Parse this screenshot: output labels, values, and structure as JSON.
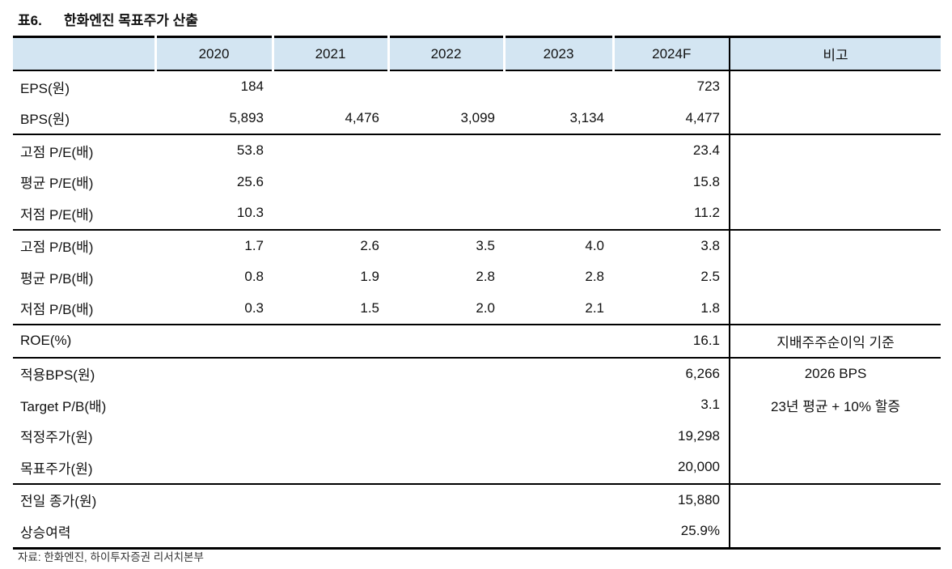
{
  "title": {
    "label": "표6.",
    "text": "한화엔진 목표주가 산출"
  },
  "colors": {
    "header_bg": "#d3e5f2",
    "rule": "#000000"
  },
  "table": {
    "columns": [
      "",
      "2020",
      "2021",
      "2022",
      "2023",
      "2024F",
      "비고"
    ],
    "rows": [
      {
        "label": "EPS(원)",
        "y2020": "184",
        "y2021": "",
        "y2022": "",
        "y2023": "",
        "y2024f": "723",
        "remark": "",
        "divider": false
      },
      {
        "label": "BPS(원)",
        "y2020": "5,893",
        "y2021": "4,476",
        "y2022": "3,099",
        "y2023": "3,134",
        "y2024f": "4,477",
        "remark": "",
        "divider": false
      },
      {
        "label": "고점 P/E(배)",
        "y2020": "53.8",
        "y2021": "",
        "y2022": "",
        "y2023": "",
        "y2024f": "23.4",
        "remark": "",
        "divider": true
      },
      {
        "label": "평균 P/E(배)",
        "y2020": "25.6",
        "y2021": "",
        "y2022": "",
        "y2023": "",
        "y2024f": "15.8",
        "remark": "",
        "divider": false
      },
      {
        "label": "저점 P/E(배)",
        "y2020": "10.3",
        "y2021": "",
        "y2022": "",
        "y2023": "",
        "y2024f": "11.2",
        "remark": "",
        "divider": false
      },
      {
        "label": "고점 P/B(배)",
        "y2020": "1.7",
        "y2021": "2.6",
        "y2022": "3.5",
        "y2023": "4.0",
        "y2024f": "3.8",
        "remark": "",
        "divider": true
      },
      {
        "label": "평균 P/B(배)",
        "y2020": "0.8",
        "y2021": "1.9",
        "y2022": "2.8",
        "y2023": "2.8",
        "y2024f": "2.5",
        "remark": "",
        "divider": false
      },
      {
        "label": "저점 P/B(배)",
        "y2020": "0.3",
        "y2021": "1.5",
        "y2022": "2.0",
        "y2023": "2.1",
        "y2024f": "1.8",
        "remark": "",
        "divider": false
      },
      {
        "label": "ROE(%)",
        "y2020": "",
        "y2021": "",
        "y2022": "",
        "y2023": "",
        "y2024f": "16.1",
        "remark": "지배주주순이익 기준",
        "divider": true
      },
      {
        "label": "적용BPS(원)",
        "y2020": "",
        "y2021": "",
        "y2022": "",
        "y2023": "",
        "y2024f": "6,266",
        "remark": "2026 BPS",
        "divider": true
      },
      {
        "label": "Target P/B(배)",
        "y2020": "",
        "y2021": "",
        "y2022": "",
        "y2023": "",
        "y2024f": "3.1",
        "remark": "23년 평균 + 10% 할증",
        "divider": false
      },
      {
        "label": "적정주가(원)",
        "y2020": "",
        "y2021": "",
        "y2022": "",
        "y2023": "",
        "y2024f": "19,298",
        "remark": "",
        "divider": false
      },
      {
        "label": "목표주가(원)",
        "y2020": "",
        "y2021": "",
        "y2022": "",
        "y2023": "",
        "y2024f": "20,000",
        "remark": "",
        "divider": false
      },
      {
        "label": "전일 종가(원)",
        "y2020": "",
        "y2021": "",
        "y2022": "",
        "y2023": "",
        "y2024f": "15,880",
        "remark": "",
        "divider": true
      },
      {
        "label": "상승여력",
        "y2020": "",
        "y2021": "",
        "y2022": "",
        "y2023": "",
        "y2024f": "25.9%",
        "remark": "",
        "divider": false
      }
    ]
  },
  "footer": {
    "source": "자료: 한화엔진, 하이투자증권 리서치본부"
  }
}
